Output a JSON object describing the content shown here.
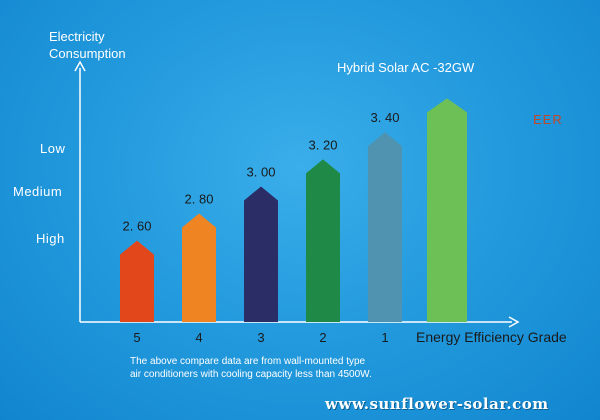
{
  "chart_data": {
    "type": "bar",
    "title": "",
    "ylabel_lines": [
      "Electricity",
      "Consumption"
    ],
    "xlabel": "Energy Efficiency Grade",
    "categories": [
      "5",
      "4",
      "3",
      "2",
      "1",
      ""
    ],
    "values": [
      2.6,
      2.8,
      3.0,
      3.2,
      3.4,
      3.65
    ],
    "value_labels": [
      "2. 60",
      "2. 80",
      "3. 00",
      "3. 20",
      "3. 40",
      ""
    ],
    "bar_colors": [
      "#e2471b",
      "#ee8422",
      "#2a2d66",
      "#1f8a47",
      "#5093b0",
      "#6cc055"
    ],
    "ylim": [
      2.0,
      3.8
    ],
    "series_label": "Hybrid Solar AC -32GW",
    "metric_label": "EER",
    "metric_label_color": "#c0482a",
    "y_levels": [
      "Low",
      "Medium",
      "High"
    ],
    "grid": false
  },
  "footnote_lines": [
    "The above compare data are from wall-mounted type",
    "air conditioners with cooling capacity less than 4500W."
  ],
  "watermark": "www.sunflower-solar.com"
}
